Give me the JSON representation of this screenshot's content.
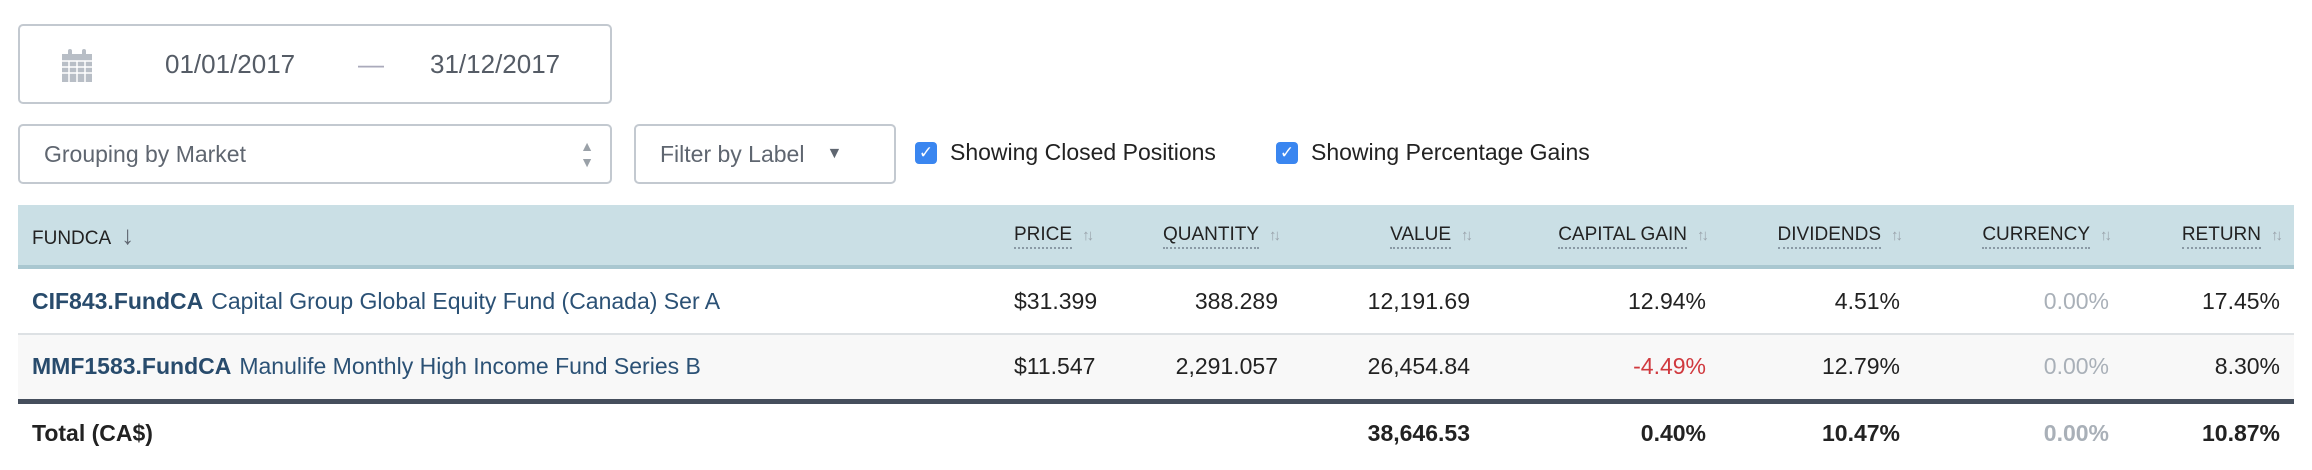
{
  "date_range": {
    "start": "01/01/2017",
    "separator": "—",
    "end": "31/12/2017",
    "icon": "calendar-icon"
  },
  "grouping": {
    "selected": "Grouping by Market"
  },
  "filter": {
    "label": "Filter by Label"
  },
  "toggles": [
    {
      "label": "Showing Closed Positions",
      "checked": true
    },
    {
      "label": "Showing Percentage Gains",
      "checked": true
    }
  ],
  "table": {
    "columns": [
      "FUNDCA",
      "PRICE",
      "QUANTITY",
      "VALUE",
      "CAPITAL GAIN",
      "DIVIDENDS",
      "CURRENCY",
      "RETURN"
    ],
    "rows": [
      {
        "ticker": "CIF843.FundCA",
        "name": "Capital Group Global Equity Fund (Canada) Ser A",
        "price": "$31.399",
        "quantity": "388.289",
        "value": "12,191.69",
        "capital_gain": "12.94%",
        "dividends": "4.51%",
        "currency": "0.00%",
        "return": "17.45%"
      },
      {
        "ticker": "MMF1583.FundCA",
        "name": "Manulife Monthly High Income Fund Series B",
        "price": "$11.547",
        "quantity": "2,291.057",
        "value": "26,454.84",
        "capital_gain": "-4.49%",
        "dividends": "12.79%",
        "currency": "0.00%",
        "return": "8.30%"
      }
    ],
    "total": {
      "label": "Total (CA$)",
      "value": "38,646.53",
      "capital_gain": "0.40%",
      "dividends": "10.47%",
      "currency": "0.00%",
      "return": "10.87%"
    }
  },
  "colors": {
    "header_bg": "#cadfe5",
    "link": "#284b6c",
    "negative": "#d0393e",
    "muted": "#a9b0b8",
    "checkbox": "#3a86f0"
  }
}
